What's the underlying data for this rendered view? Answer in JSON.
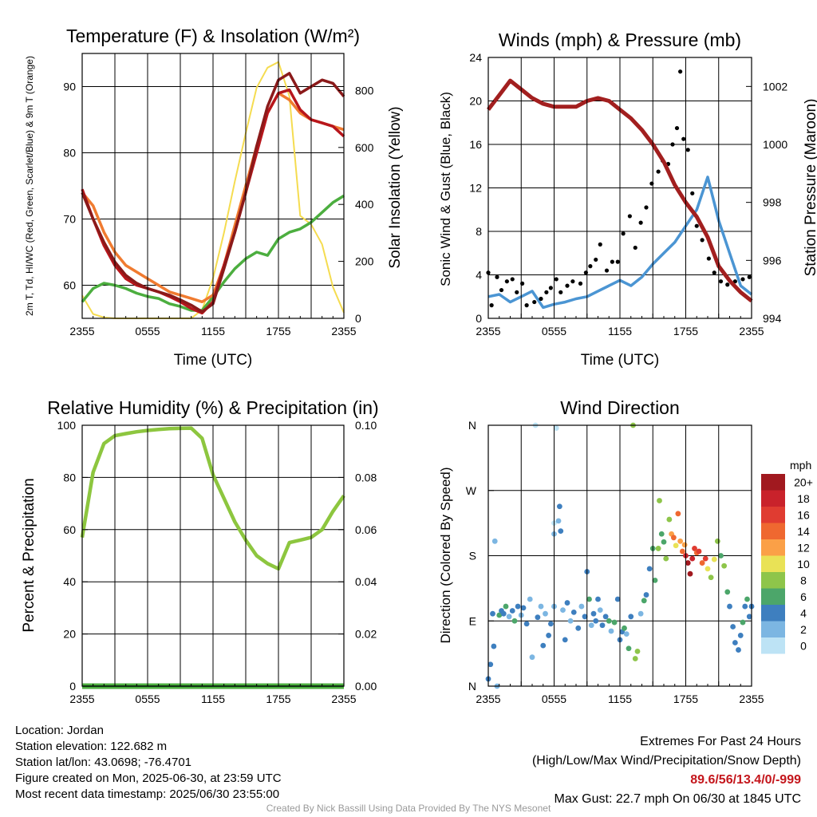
{
  "chart_data": [
    {
      "type": "line",
      "title": "Temperature (F) & Insolation (W/m²)",
      "xlabel": "Time (UTC)",
      "ylabel": "2m T, Td, HI/WC (Red, Green, Scarlet/Blue) & 9m T (Orange)",
      "ylabel_right": "Solar Insolation (Yellow)",
      "x_ticks": [
        "2355",
        "0555",
        "1155",
        "1755",
        "2355"
      ],
      "ylim": [
        55,
        95
      ],
      "ylim_right": [
        0,
        930
      ],
      "y_ticks": [
        60,
        70,
        80,
        90
      ],
      "y_ticks_right": [
        0,
        200,
        400,
        600,
        800
      ],
      "x": [
        0,
        1,
        2,
        3,
        4,
        5,
        6,
        7,
        8,
        9,
        10,
        11,
        12,
        13,
        14,
        15,
        16,
        17,
        18,
        19,
        20,
        21,
        22,
        23,
        24
      ],
      "series": [
        {
          "color": "#b8161c",
          "axis": "left",
          "values": [
            74.5,
            70,
            66,
            63,
            61,
            60,
            59.5,
            59,
            58.3,
            57.5,
            56.5,
            55.8,
            57.5,
            63,
            68,
            74,
            80,
            86,
            89,
            89.5,
            86.5,
            85,
            84.5,
            84,
            82.5
          ]
        },
        {
          "color": "#4cae3f",
          "axis": "left",
          "values": [
            57.5,
            59.5,
            60.3,
            60,
            59.5,
            58.8,
            58.3,
            58,
            57.2,
            56.8,
            56.2,
            56.2,
            58.2,
            60.5,
            62.5,
            64,
            65,
            64.5,
            67,
            68,
            68.5,
            69.5,
            71,
            72.5,
            73.5
          ]
        },
        {
          "color": "#f07b30",
          "axis": "left",
          "values": [
            74,
            72,
            68,
            65,
            63,
            62,
            61,
            60,
            59,
            58.5,
            58,
            57.5,
            58.5,
            63,
            69,
            75,
            81,
            86,
            89,
            88,
            86,
            85,
            84.5,
            84,
            83.5
          ]
        },
        {
          "color": "#8b1a1a",
          "axis": "left",
          "values": [
            74,
            70,
            66.5,
            63.5,
            61.5,
            60.3,
            59.5,
            59,
            58.5,
            57.8,
            57,
            56,
            57.2,
            62.5,
            68,
            74,
            81,
            87,
            91,
            92,
            89,
            90,
            91,
            90.5,
            88.5
          ]
        },
        {
          "color": "#f5dc50",
          "axis": "right",
          "values": [
            80,
            15,
            3,
            0,
            0,
            0,
            0,
            0,
            0,
            0,
            0,
            30,
            140,
            300,
            480,
            650,
            810,
            880,
            900,
            780,
            360,
            330,
            260,
            110,
            20
          ]
        }
      ]
    },
    {
      "type": "line",
      "title": "Winds (mph) & Pressure (mb)",
      "xlabel": "Time (UTC)",
      "ylabel": "Sonic Wind & Gust (Blue, Black)",
      "ylabel_right": "Station Pressure (Maroon)",
      "x_ticks": [
        "2355",
        "0555",
        "1155",
        "1755",
        "2355"
      ],
      "ylim": [
        0,
        24
      ],
      "ylim_right": [
        994,
        1003
      ],
      "y_ticks": [
        0,
        4,
        8,
        12,
        16,
        20,
        24
      ],
      "y_ticks_right": [
        994,
        996,
        998,
        1000,
        1002
      ],
      "x": [
        0,
        1,
        2,
        3,
        4,
        5,
        6,
        7,
        8,
        9,
        10,
        11,
        12,
        13,
        14,
        15,
        16,
        17,
        18,
        19,
        20,
        21,
        22,
        23,
        24
      ],
      "series": [
        {
          "name": "Wind",
          "color": "#4b95d3",
          "axis": "left",
          "values": [
            2,
            2.2,
            1.5,
            2,
            2.5,
            1,
            1.3,
            1.5,
            1.8,
            2,
            2.5,
            3,
            3.5,
            3,
            3.8,
            5,
            6,
            7,
            8.5,
            10,
            13,
            9,
            6,
            3,
            2.2
          ]
        },
        {
          "name": "Gust",
          "color": "#000000",
          "axis": "left",
          "points": [
            [
              0,
              4.2
            ],
            [
              0.3,
              1.2
            ],
            [
              0.8,
              3.8
            ],
            [
              1.2,
              2.6
            ],
            [
              1.7,
              3.4
            ],
            [
              2.2,
              3.6
            ],
            [
              2.6,
              2.4
            ],
            [
              3.1,
              3.2
            ],
            [
              3.5,
              1.2
            ],
            [
              4.2,
              1.5
            ],
            [
              4.8,
              1.8
            ],
            [
              5.3,
              2.4
            ],
            [
              5.7,
              2.8
            ],
            [
              6.2,
              3.6
            ],
            [
              6.6,
              2.4
            ],
            [
              7.2,
              3
            ],
            [
              7.7,
              3.4
            ],
            [
              8.4,
              3.2
            ],
            [
              8.9,
              4.2
            ],
            [
              9.3,
              4.8
            ],
            [
              9.8,
              5.4
            ],
            [
              10.2,
              6.8
            ],
            [
              10.8,
              4.4
            ],
            [
              11.3,
              5.2
            ],
            [
              11.8,
              5.2
            ],
            [
              12.3,
              7.8
            ],
            [
              12.9,
              9.4
            ],
            [
              13.4,
              6.5
            ],
            [
              13.9,
              8.8
            ],
            [
              14.4,
              10.2
            ],
            [
              14.9,
              12.4
            ],
            [
              15.5,
              13.5
            ],
            [
              15.9,
              14.5
            ],
            [
              16.4,
              14.2
            ],
            [
              16.8,
              16
            ],
            [
              17.2,
              17.5
            ],
            [
              17.5,
              22.7
            ],
            [
              17.8,
              16.5
            ],
            [
              18.2,
              15.5
            ],
            [
              18.6,
              11.5
            ],
            [
              19,
              8.5
            ],
            [
              19.5,
              7.2
            ],
            [
              20.1,
              5.5
            ],
            [
              20.6,
              4.2
            ],
            [
              21.2,
              3.4
            ],
            [
              21.8,
              3.1
            ],
            [
              22.5,
              3.4
            ],
            [
              23.2,
              3.6
            ],
            [
              23.8,
              3.8
            ]
          ]
        },
        {
          "name": "Pressure",
          "color": "#a21f1f",
          "axis": "right",
          "values": [
            1001.2,
            1001.7,
            1002.2,
            1001.9,
            1001.6,
            1001.4,
            1001.3,
            1001.3,
            1001.3,
            1001.5,
            1001.6,
            1001.5,
            1001.2,
            1000.9,
            1000.5,
            1000,
            999.4,
            998.6,
            998,
            997.5,
            996.8,
            995.8,
            995.3,
            994.9,
            994.6
          ]
        }
      ]
    },
    {
      "type": "line",
      "title": "Relative Humidity (%) & Precipitation (in)",
      "xlabel": "",
      "ylabel": "Percent & Precipitation",
      "x_ticks": [
        "2355",
        "0555",
        "1155",
        "1755",
        "2355"
      ],
      "ylim": [
        0,
        100
      ],
      "ylim_right": [
        0,
        0.1
      ],
      "y_ticks": [
        0,
        20,
        40,
        60,
        80,
        100
      ],
      "y_ticks_right": [
        "0.00",
        "0.02",
        "0.04",
        "0.06",
        "0.08",
        "0.10"
      ],
      "x": [
        0,
        1,
        2,
        3,
        4,
        5,
        6,
        7,
        8,
        9,
        10,
        11,
        12,
        13,
        14,
        15,
        16,
        17,
        18,
        19,
        20,
        21,
        22,
        23,
        24
      ],
      "series": [
        {
          "name": "RH",
          "color": "#8dc63f",
          "axis": "left",
          "values": [
            57,
            82,
            93,
            96,
            96.8,
            97.5,
            98,
            98.4,
            98.7,
            98.8,
            98.9,
            95,
            81,
            72,
            63,
            56,
            50,
            47,
            45,
            55,
            56,
            57,
            60,
            67,
            73
          ]
        },
        {
          "name": "Precipitation",
          "color": "#4cae3f",
          "axis": "right",
          "values": [
            0,
            0,
            0,
            0,
            0,
            0,
            0,
            0,
            0,
            0,
            0,
            0,
            0,
            0,
            0,
            0,
            0,
            0,
            0,
            0,
            0,
            0,
            0,
            0,
            0
          ]
        }
      ]
    },
    {
      "type": "scatter",
      "title": "Wind Direction",
      "ylabel": "Direction (Colored By Speed)",
      "x_ticks": [
        "2355",
        "0555",
        "1155",
        "1755",
        "2355"
      ],
      "y_ticks": [
        "N",
        "E",
        "S",
        "W",
        "N"
      ],
      "ylim": [
        0,
        360
      ],
      "legend": {
        "title": "mph",
        "labels": [
          "20+",
          "18",
          "16",
          "14",
          "12",
          "10",
          "8",
          "6",
          "4",
          "2",
          "0"
        ],
        "colors": [
          "#a1191f",
          "#c9222b",
          "#e03c31",
          "#ef6830",
          "#fba047",
          "#e9e256",
          "#8ec54a",
          "#4ca66a",
          "#3e7fbf",
          "#7cb6e2",
          "#bde3f5"
        ]
      },
      "points": [
        [
          0,
          10,
          2
        ],
        [
          0.2,
          30,
          2
        ],
        [
          0.4,
          100,
          2
        ],
        [
          0.5,
          55,
          2
        ],
        [
          0.6,
          200,
          1
        ],
        [
          0.8,
          0,
          1
        ],
        [
          1,
          98,
          3
        ],
        [
          1.2,
          104,
          2
        ],
        [
          1.4,
          100,
          2
        ],
        [
          1.6,
          110,
          3
        ],
        [
          1.9,
          96,
          1
        ],
        [
          2.2,
          104,
          2
        ],
        [
          2.4,
          90,
          3
        ],
        [
          2.7,
          110,
          2
        ],
        [
          3,
          98,
          1
        ],
        [
          3.2,
          108,
          2
        ],
        [
          3.5,
          86,
          2
        ],
        [
          3.8,
          120,
          1
        ],
        [
          4,
          40,
          1
        ],
        [
          4.3,
          360,
          0
        ],
        [
          4.5,
          95,
          2
        ],
        [
          4.8,
          110,
          1
        ],
        [
          5,
          56,
          2
        ],
        [
          5.2,
          100,
          1
        ],
        [
          5.5,
          70,
          2
        ],
        [
          5.7,
          86,
          2
        ],
        [
          6,
          110,
          1
        ],
        [
          6,
          210,
          1
        ],
        [
          6,
          225,
          0
        ],
        [
          6.2,
          356,
          0
        ],
        [
          6.4,
          228,
          1
        ],
        [
          6.5,
          248,
          2
        ],
        [
          6.6,
          214,
          2
        ],
        [
          6.8,
          105,
          1
        ],
        [
          7,
          64,
          2
        ],
        [
          7.2,
          115,
          2
        ],
        [
          7.5,
          90,
          1
        ],
        [
          7.8,
          102,
          2
        ],
        [
          8.2,
          80,
          2
        ],
        [
          8.5,
          110,
          1
        ],
        [
          8.8,
          96,
          2
        ],
        [
          9,
          158,
          2
        ],
        [
          9.2,
          120,
          3
        ],
        [
          9.4,
          84,
          1
        ],
        [
          9.6,
          100,
          2
        ],
        [
          9.8,
          90,
          2
        ],
        [
          10,
          120,
          2
        ],
        [
          10.2,
          105,
          1
        ],
        [
          10.4,
          84,
          2
        ],
        [
          10.7,
          96,
          2
        ],
        [
          11,
          90,
          3
        ],
        [
          11.2,
          76,
          1
        ],
        [
          11.5,
          88,
          3
        ],
        [
          11.8,
          120,
          2
        ],
        [
          12,
          64,
          2
        ],
        [
          12.2,
          75,
          2
        ],
        [
          12.4,
          80,
          3
        ],
        [
          12.6,
          72,
          1
        ],
        [
          12.8,
          52,
          3
        ],
        [
          13,
          96,
          2
        ],
        [
          13.2,
          360,
          4
        ],
        [
          13.4,
          38,
          4
        ],
        [
          13.6,
          48,
          4
        ],
        [
          13.9,
          100,
          1
        ],
        [
          14.2,
          118,
          3
        ],
        [
          14.4,
          126,
          2
        ],
        [
          14.7,
          162,
          2
        ],
        [
          15,
          190,
          3
        ],
        [
          15.2,
          146,
          3
        ],
        [
          15.5,
          190,
          4
        ],
        [
          15.6,
          256,
          4
        ],
        [
          15.8,
          210,
          3
        ],
        [
          16,
          199,
          3
        ],
        [
          16.2,
          176,
          4
        ],
        [
          16.5,
          230,
          4
        ],
        [
          16.7,
          210,
          6
        ],
        [
          16.9,
          205,
          7
        ],
        [
          17.1,
          194,
          5
        ],
        [
          17.3,
          238,
          7
        ],
        [
          17.5,
          200,
          6
        ],
        [
          17.7,
          186,
          7
        ],
        [
          17.9,
          195,
          6
        ],
        [
          18,
          180,
          9
        ],
        [
          18.2,
          170,
          10
        ],
        [
          18.4,
          155,
          10
        ],
        [
          18.6,
          176,
          9
        ],
        [
          18.8,
          190,
          8
        ],
        [
          19,
          184,
          7
        ],
        [
          19.2,
          186,
          8
        ],
        [
          19.5,
          170,
          7
        ],
        [
          19.8,
          176,
          8
        ],
        [
          20,
          162,
          5
        ],
        [
          20.3,
          150,
          4
        ],
        [
          20.6,
          175,
          5
        ],
        [
          20.9,
          200,
          4
        ],
        [
          21.2,
          180,
          3
        ],
        [
          21.5,
          166,
          4
        ],
        [
          21.8,
          130,
          3
        ],
        [
          22,
          110,
          2
        ],
        [
          22.3,
          82,
          2
        ],
        [
          22.5,
          60,
          2
        ],
        [
          22.8,
          50,
          2
        ],
        [
          23,
          70,
          2
        ],
        [
          23.2,
          88,
          3
        ],
        [
          23.4,
          110,
          2
        ],
        [
          23.6,
          120,
          3
        ],
        [
          23.8,
          96,
          2
        ],
        [
          24,
          110,
          2
        ]
      ]
    }
  ],
  "info": {
    "location": "Location: Jordan",
    "elevation": "Station elevation: 122.682 m",
    "latlon": "Station lat/lon: 43.0698; -76.4701",
    "created": "Figure created on Mon, 2025-06-30, at 23:59 UTC",
    "recent": "Most recent data timestamp: 2025/06/30 23:55:00"
  },
  "extremes": {
    "heading": "Extremes For Past 24 Hours",
    "fields": "(High/Low/Max Wind/Precipitation/Snow Depth)",
    "values": "89.6/56/13.4/0/-999",
    "gust": "Max Gust: 22.7 mph On 06/30 at 1845 UTC"
  },
  "credit": "Created By Nick Bassill Using Data Provided By The NYS Mesonet"
}
